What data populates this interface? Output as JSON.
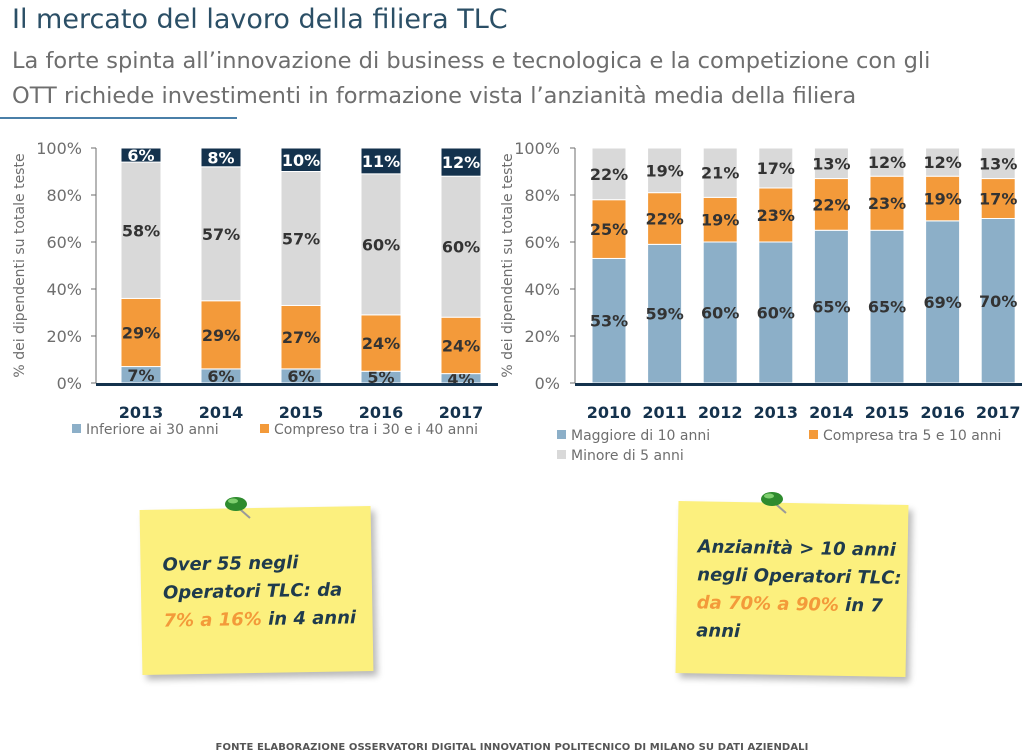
{
  "header": {
    "title": "Il mercato del lavoro della filiera TLC",
    "subtitle_line1": "La forte spinta all’innovazione di business e tecnologica e la competizione con gli",
    "subtitle_line2": "OTT richiede investimenti in formazione vista l’anzianità media della filiera"
  },
  "chart_data": [
    {
      "type": "bar",
      "stacked": true,
      "categories": [
        "2013",
        "2014",
        "2015",
        "2016",
        "2017"
      ],
      "ylabel": "% dei dipendenti su totale teste",
      "ylim": [
        0,
        100
      ],
      "yticks": [
        "0%",
        "20%",
        "40%",
        "60%",
        "80%",
        "100%"
      ],
      "grid": false,
      "legend_position": "bottom",
      "series": [
        {
          "name": "Inferiore ai 30 anni",
          "color": "#8cafc8",
          "values": [
            7,
            6,
            6,
            5,
            4
          ],
          "labels": [
            "7%",
            "6%",
            "6%",
            "5%",
            "4%"
          ]
        },
        {
          "name": "Compreso tra i 30 e i 40 anni",
          "color": "#f39a3a",
          "values": [
            29,
            29,
            27,
            24,
            24
          ],
          "labels": [
            "29%",
            "29%",
            "27%",
            "24%",
            "24%"
          ]
        },
        {
          "name": "",
          "color": "#d9d9d9",
          "values": [
            58,
            57,
            57,
            60,
            60
          ],
          "labels": [
            "58%",
            "57%",
            "57%",
            "60%",
            "60%"
          ]
        },
        {
          "name": "",
          "color": "#14324d",
          "values": [
            6,
            8,
            10,
            11,
            12
          ],
          "labels": [
            "6%",
            "8%",
            "10%",
            "11%",
            "12%"
          ]
        }
      ]
    },
    {
      "type": "bar",
      "stacked": true,
      "categories": [
        "2010",
        "2011",
        "2012",
        "2013",
        "2014",
        "2015",
        "2016",
        "2017"
      ],
      "ylabel": "% dei dipendenti su totale teste",
      "ylim": [
        0,
        100
      ],
      "yticks": [
        "0%",
        "20%",
        "40%",
        "60%",
        "80%",
        "100%"
      ],
      "grid": false,
      "legend_position": "bottom",
      "series": [
        {
          "name": "Maggiore di 10 anni",
          "color": "#8cafc8",
          "values": [
            53,
            59,
            60,
            60,
            65,
            65,
            69,
            70
          ],
          "labels": [
            "53%",
            "59%",
            "60%",
            "60%",
            "65%",
            "65%",
            "69%",
            "70%"
          ]
        },
        {
          "name": "Compresa tra 5 e 10 anni",
          "color": "#f39a3a",
          "values": [
            25,
            22,
            19,
            23,
            22,
            23,
            19,
            17
          ],
          "labels": [
            "25%",
            "22%",
            "19%",
            "23%",
            "22%",
            "23%",
            "19%",
            "17%"
          ]
        },
        {
          "name": "Minore di 5 anni",
          "color": "#d9d9d9",
          "values": [
            22,
            19,
            21,
            17,
            13,
            12,
            12,
            13
          ],
          "labels": [
            "22%",
            "19%",
            "21%",
            "17%",
            "13%",
            "12%",
            "12%",
            "13%"
          ]
        }
      ]
    }
  ],
  "legends": {
    "left": [
      {
        "label": "Inferiore ai 30 anni",
        "color": "#8cafc8"
      },
      {
        "label": "Compreso tra i 30 e i 40 anni",
        "color": "#f39a3a"
      }
    ],
    "right": [
      {
        "label": "Maggiore di 10 anni",
        "color": "#8cafc8"
      },
      {
        "label": "Compresa tra 5 e 10 anni",
        "color": "#f39a3a"
      },
      {
        "label": "Minore di 5 anni",
        "color": "#d9d9d9"
      }
    ]
  },
  "notes": {
    "left": {
      "line1": "Over 55 negli",
      "line2": "Operatori TLC: da",
      "highlight": "7% a 16%",
      "line3_rest": " in 4 anni"
    },
    "right": {
      "line1": "Anzianità > 10 anni",
      "line2": "negli Operatori TLC:",
      "highlight": "da 70% a 90%",
      "line3_rest": " in 7",
      "line4": "anni"
    }
  },
  "footer": "FONTE ELABORAZIONE OSSERVATORI DIGITAL INNOVATION POLITECNICO DI MILANO SU DATI AZIENDALI",
  "colors": {
    "title": "#2b4f66",
    "axis": "#14324d",
    "note_bg": "#fcf07e",
    "highlight": "#f39a3a"
  }
}
